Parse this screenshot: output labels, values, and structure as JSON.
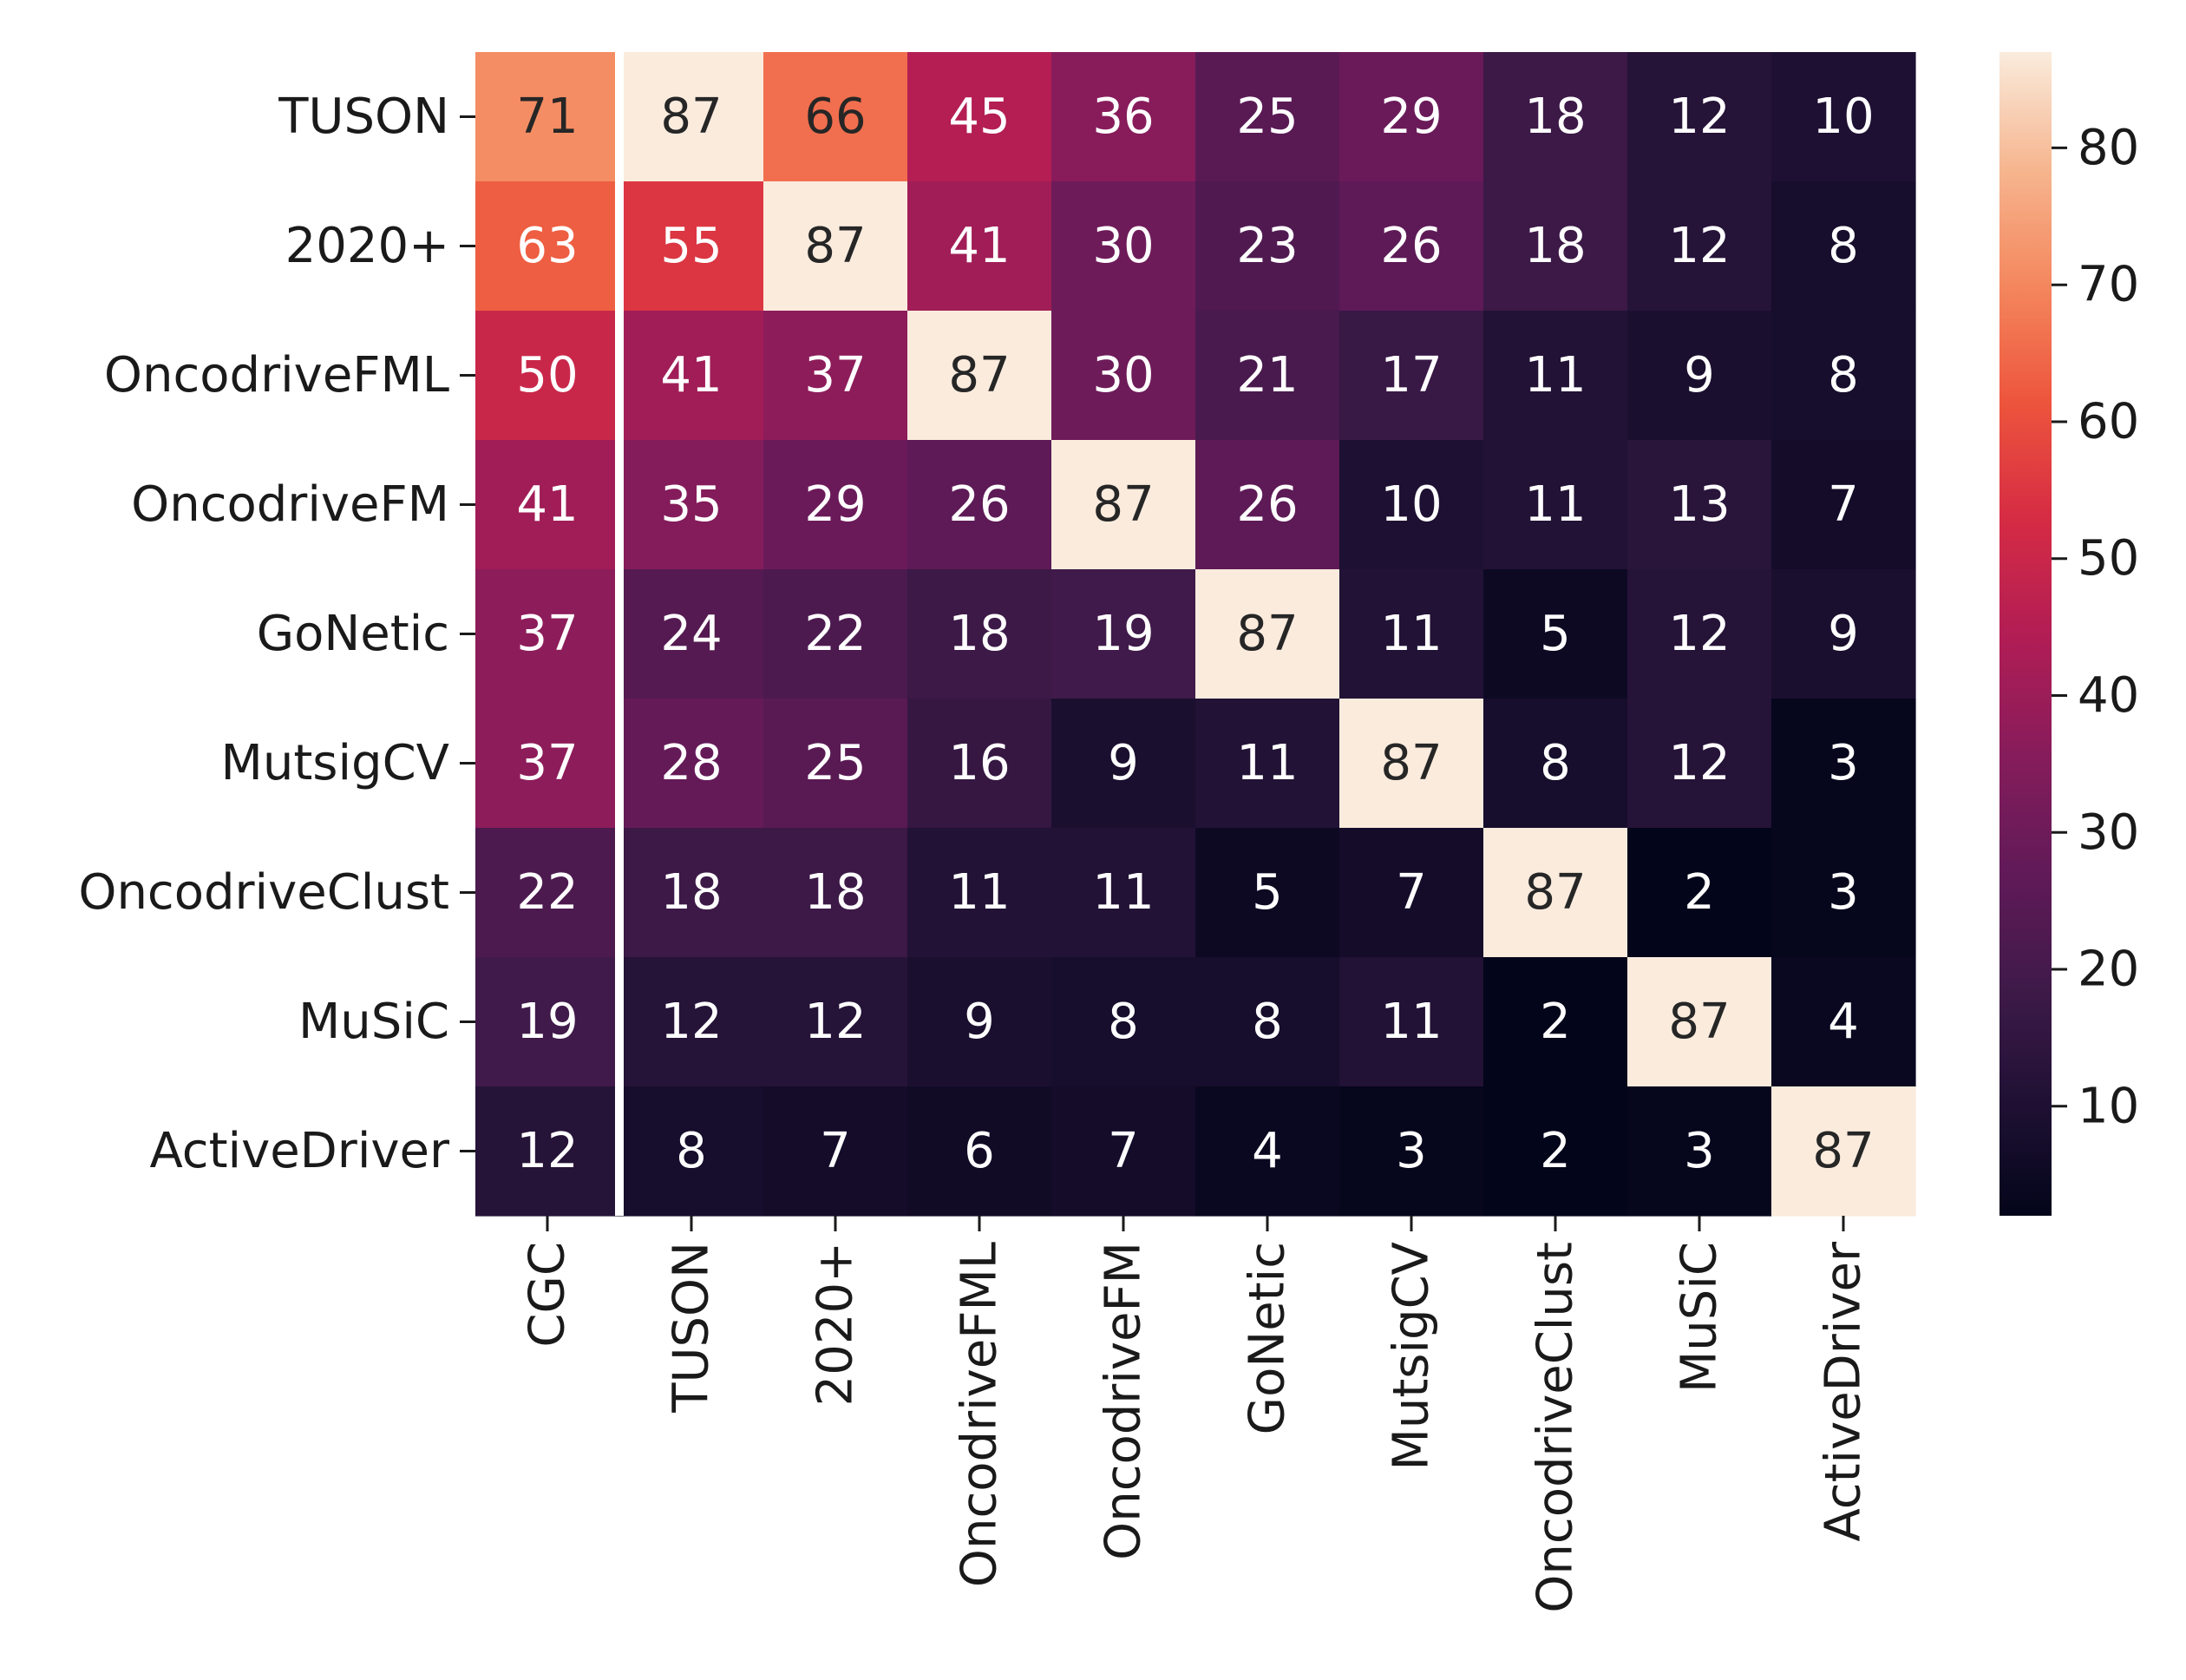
{
  "chart_data": {
    "type": "heatmap",
    "title": "",
    "xlabel": "",
    "ylabel": "",
    "rows": [
      "TUSON",
      "2020+",
      "OncodriveFML",
      "OncodriveFM",
      "GoNetic",
      "MutsigCV",
      "OncodriveClust",
      "MuSiC",
      "ActiveDriver"
    ],
    "columns": [
      "CGC",
      "TUSON",
      "2020+",
      "OncodriveFML",
      "OncodriveFM",
      "GoNetic",
      "MutsigCV",
      "OncodriveClust",
      "MuSiC",
      "ActiveDriver"
    ],
    "values": [
      [
        71,
        87,
        66,
        45,
        36,
        25,
        29,
        18,
        12,
        10
      ],
      [
        63,
        55,
        87,
        41,
        30,
        23,
        26,
        18,
        12,
        8
      ],
      [
        50,
        41,
        37,
        87,
        30,
        21,
        17,
        11,
        9,
        8
      ],
      [
        41,
        35,
        29,
        26,
        87,
        26,
        10,
        11,
        13,
        7
      ],
      [
        37,
        24,
        22,
        18,
        19,
        87,
        11,
        5,
        12,
        9
      ],
      [
        37,
        28,
        25,
        16,
        9,
        11,
        87,
        8,
        12,
        3
      ],
      [
        22,
        18,
        18,
        11,
        11,
        5,
        7,
        87,
        2,
        3
      ],
      [
        19,
        12,
        12,
        9,
        8,
        8,
        11,
        2,
        87,
        4
      ],
      [
        12,
        8,
        7,
        6,
        7,
        4,
        3,
        2,
        3,
        87
      ]
    ],
    "value_range": [
      2,
      87
    ],
    "colormap": "rocket",
    "colorbar": {
      "ticks": [
        10,
        20,
        30,
        40,
        50,
        60,
        70,
        80
      ],
      "position": "right"
    },
    "separator_after_column": 0,
    "separator_color": "#ffffff",
    "light_text_color": "#ffffff",
    "dark_text_color": "#262626"
  }
}
